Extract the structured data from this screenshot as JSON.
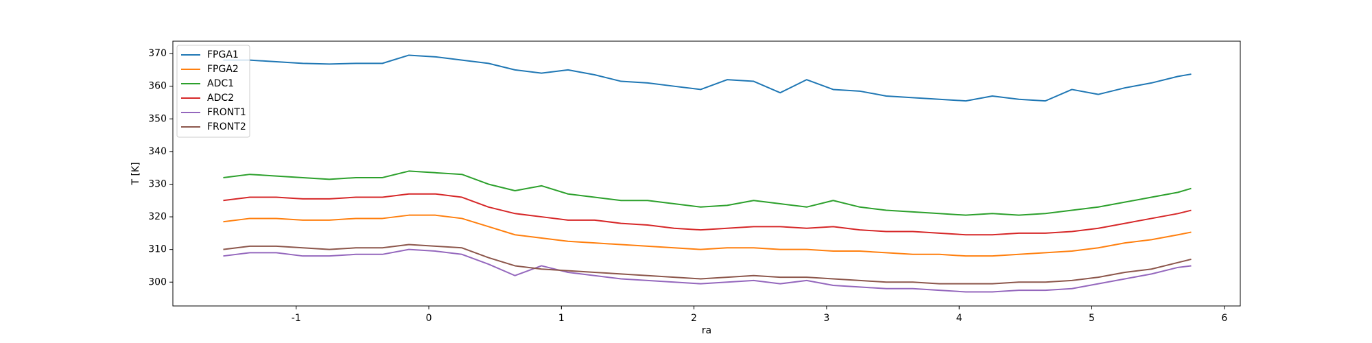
{
  "chart_data": {
    "type": "line",
    "xlabel": "ra",
    "ylabel": "T [K]",
    "x": [
      -1.55,
      -1.35,
      -1.15,
      -0.95,
      -0.75,
      -0.55,
      -0.35,
      -0.15,
      0.05,
      0.25,
      0.45,
      0.65,
      0.85,
      1.05,
      1.25,
      1.45,
      1.65,
      1.85,
      2.05,
      2.25,
      2.45,
      2.65,
      2.85,
      3.05,
      3.25,
      3.45,
      3.65,
      3.85,
      4.05,
      4.25,
      4.45,
      4.65,
      4.85,
      5.05,
      5.25,
      5.45,
      5.65,
      5.75
    ],
    "series": [
      {
        "name": "FPGA1",
        "color": "#1f77b4",
        "values": [
          368,
          368,
          367.5,
          367,
          366.8,
          367,
          367,
          369.5,
          369,
          368,
          367,
          365,
          364,
          365,
          363.5,
          361.5,
          361,
          360,
          359,
          362,
          361.5,
          358,
          362,
          359,
          358.5,
          357,
          356.5,
          356,
          355.5,
          357,
          356,
          355.5,
          359,
          357.5,
          359.5,
          361,
          363,
          363.7
        ]
      },
      {
        "name": "FPGA2",
        "color": "#ff7f0e",
        "values": [
          318.5,
          319.5,
          319.5,
          319,
          319,
          319.5,
          319.5,
          320.5,
          320.5,
          319.5,
          317,
          314.5,
          313.5,
          312.5,
          312,
          311.5,
          311,
          310.5,
          310,
          310.5,
          310.5,
          310,
          310,
          309.5,
          309.5,
          309,
          308.5,
          308.5,
          308,
          308,
          308.5,
          309,
          309.5,
          310.5,
          312,
          313,
          314.5,
          315.3
        ]
      },
      {
        "name": "ADC1",
        "color": "#2ca02c",
        "values": [
          332,
          333,
          332.5,
          332,
          331.5,
          332,
          332,
          334,
          333.5,
          333,
          330,
          328,
          329.5,
          327,
          326,
          325,
          325,
          324,
          323,
          323.5,
          325,
          324,
          323,
          325,
          323,
          322,
          321.5,
          321,
          320.5,
          321,
          320.5,
          321,
          322,
          323,
          324.5,
          326,
          327.5,
          328.7
        ]
      },
      {
        "name": "ADC2",
        "color": "#d62728",
        "values": [
          325,
          326,
          326,
          325.5,
          325.5,
          326,
          326,
          327,
          327,
          326,
          323,
          321,
          320,
          319,
          319,
          318,
          317.5,
          316.5,
          316,
          316.5,
          317,
          317,
          316.5,
          317,
          316,
          315.5,
          315.5,
          315,
          314.5,
          314.5,
          315,
          315,
          315.5,
          316.5,
          318,
          319.5,
          321,
          322
        ]
      },
      {
        "name": "FRONT1",
        "color": "#9467bd",
        "values": [
          308,
          309,
          309,
          308,
          308,
          308.5,
          308.5,
          310,
          309.5,
          308.5,
          305.5,
          302,
          305,
          303,
          302,
          301,
          300.5,
          300,
          299.5,
          300,
          300.5,
          299.5,
          300.5,
          299,
          298.5,
          298,
          298,
          297.5,
          297,
          297,
          297.5,
          297.5,
          298,
          299.5,
          301,
          302.5,
          304.5,
          305
        ]
      },
      {
        "name": "FRONT2",
        "color": "#8c564b",
        "values": [
          310,
          311,
          311,
          310.5,
          310,
          310.5,
          310.5,
          311.5,
          311,
          310.5,
          307.5,
          305,
          304,
          303.5,
          303,
          302.5,
          302,
          301.5,
          301,
          301.5,
          302,
          301.5,
          301.5,
          301,
          300.5,
          300,
          300,
          299.5,
          299.5,
          299.5,
          300,
          300,
          300.5,
          301.5,
          303,
          304,
          306,
          307
        ]
      }
    ],
    "xlim": [
      -1.93,
      6.12
    ],
    "xticks": [
      -1,
      0,
      1,
      2,
      3,
      4,
      5,
      6
    ],
    "ylim": [
      292.7,
      373.8
    ],
    "yticks": [
      300,
      310,
      320,
      330,
      340,
      350,
      360,
      370
    ],
    "legend": "upper left"
  }
}
